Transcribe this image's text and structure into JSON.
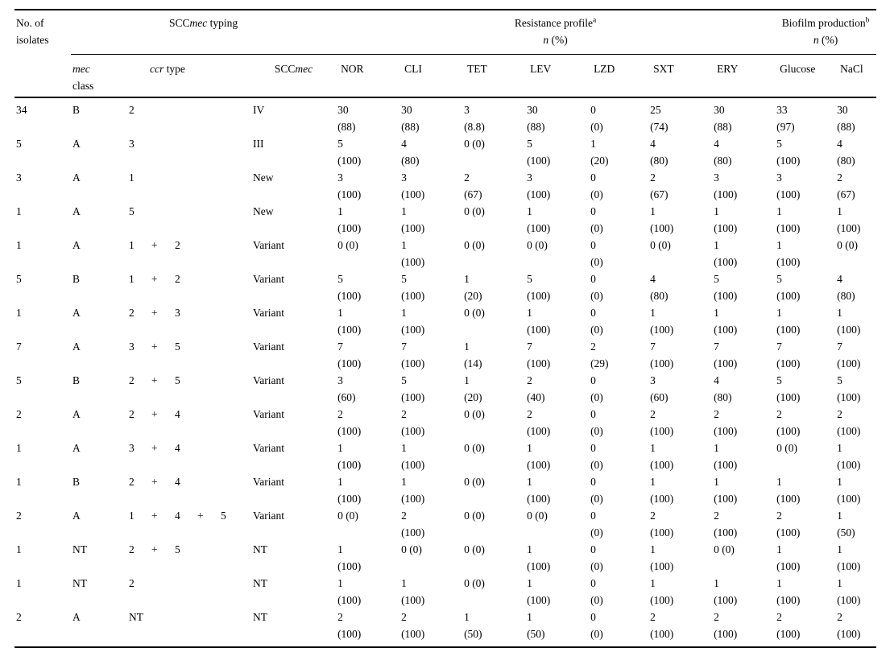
{
  "colors": {
    "background": "#ffffff",
    "text": "#000000",
    "rule": "#000000"
  },
  "table": {
    "header": {
      "no_of_isolates_line1": "No. of",
      "no_of_isolates_line2": "isolates",
      "sccmec_typing": [
        {
          "t": "SCC"
        },
        {
          "t": "mec",
          "i": true
        },
        {
          "t": " typing"
        }
      ],
      "resistance_title": [
        {
          "t": "Resistance profile"
        },
        {
          "t": "a",
          "sup": true
        }
      ],
      "biofilm_title": [
        {
          "t": "Biofilm production"
        },
        {
          "t": "b",
          "sup": true
        }
      ],
      "n_pct": [
        {
          "t": "n",
          "i": true
        },
        {
          "t": " (%)"
        }
      ],
      "mec_word": [
        {
          "t": "mec",
          "i": true
        }
      ],
      "class_word": "class",
      "ccr_type": [
        {
          "t": "ccr",
          "i": true
        },
        {
          "t": " type"
        }
      ],
      "sccmec_label": [
        {
          "t": "SCC"
        },
        {
          "t": "mec",
          "i": true
        }
      ],
      "res_cols": [
        "NOR",
        "CLI",
        "TET",
        "LEV",
        "LZD",
        "SXT",
        "ERY"
      ],
      "bio_cols": [
        "Glucose",
        "NaCl"
      ]
    },
    "value_col_keys": [
      "nor",
      "cli",
      "tet",
      "lev",
      "lzd",
      "sxt",
      "ery",
      "glucose",
      "nacl"
    ],
    "rows": [
      {
        "isolates": "34",
        "mec_class": "B",
        "ccr": [
          "2",
          "",
          "",
          "",
          ""
        ],
        "sccmec": "IV",
        "values": [
          [
            "30",
            "(88)"
          ],
          [
            "30",
            "(88)"
          ],
          [
            "3",
            "(8.8)"
          ],
          [
            "30",
            "(88)"
          ],
          [
            "0",
            "(0)"
          ],
          [
            "25",
            "(74)"
          ],
          [
            "30",
            "(88)"
          ],
          [
            "33",
            "(97)"
          ],
          [
            "30",
            "(88)"
          ]
        ]
      },
      {
        "isolates": "5",
        "mec_class": "A",
        "ccr": [
          "3",
          "",
          "",
          "",
          ""
        ],
        "sccmec": "III",
        "values": [
          [
            "5",
            "(100)"
          ],
          [
            "4",
            "(80)"
          ],
          [
            "0 (0)",
            ""
          ],
          [
            "5",
            "(100)"
          ],
          [
            "1",
            "(20)"
          ],
          [
            "4",
            "(80)"
          ],
          [
            "4",
            "(80)"
          ],
          [
            "5",
            "(100)"
          ],
          [
            "4",
            "(80)"
          ]
        ]
      },
      {
        "isolates": "3",
        "mec_class": "A",
        "ccr": [
          "1",
          "",
          "",
          "",
          ""
        ],
        "sccmec": "New",
        "values": [
          [
            "3",
            "(100)"
          ],
          [
            "3",
            "(100)"
          ],
          [
            "2",
            "(67)"
          ],
          [
            "3",
            "(100)"
          ],
          [
            "0",
            "(0)"
          ],
          [
            "2",
            "(67)"
          ],
          [
            "3",
            "(100)"
          ],
          [
            "3",
            "(100)"
          ],
          [
            "2",
            "(67)"
          ]
        ]
      },
      {
        "isolates": "1",
        "mec_class": "A",
        "ccr": [
          "5",
          "",
          "",
          "",
          ""
        ],
        "sccmec": "New",
        "values": [
          [
            "1",
            "(100)"
          ],
          [
            "1",
            "(100)"
          ],
          [
            "0 (0)",
            ""
          ],
          [
            "1",
            "(100)"
          ],
          [
            "0",
            "(0)"
          ],
          [
            "1",
            "(100)"
          ],
          [
            "1",
            "(100)"
          ],
          [
            "1",
            "(100)"
          ],
          [
            "1",
            "(100)"
          ]
        ]
      },
      {
        "isolates": "1",
        "mec_class": "A",
        "ccr": [
          "1",
          "+",
          "2",
          "",
          ""
        ],
        "sccmec": "Variant",
        "values": [
          [
            "0 (0)",
            ""
          ],
          [
            "1",
            "(100)"
          ],
          [
            "0 (0)",
            ""
          ],
          [
            "0 (0)",
            ""
          ],
          [
            "0",
            "(0)"
          ],
          [
            "0 (0)",
            ""
          ],
          [
            "1",
            "(100)"
          ],
          [
            "1",
            "(100)"
          ],
          [
            "0 (0)",
            ""
          ]
        ]
      },
      {
        "isolates": "5",
        "mec_class": "B",
        "ccr": [
          "1",
          "+",
          "2",
          "",
          ""
        ],
        "sccmec": "Variant",
        "values": [
          [
            "5",
            "(100)"
          ],
          [
            "5",
            "(100)"
          ],
          [
            "1",
            "(20)"
          ],
          [
            "5",
            "(100)"
          ],
          [
            "0",
            "(0)"
          ],
          [
            "4",
            "(80)"
          ],
          [
            "5",
            "(100)"
          ],
          [
            "5",
            "(100)"
          ],
          [
            "4",
            "(80)"
          ]
        ]
      },
      {
        "isolates": "1",
        "mec_class": "A",
        "ccr": [
          "2",
          "+",
          "3",
          "",
          ""
        ],
        "sccmec": "Variant",
        "values": [
          [
            "1",
            "(100)"
          ],
          [
            "1",
            "(100)"
          ],
          [
            "0 (0)",
            ""
          ],
          [
            "1",
            "(100)"
          ],
          [
            "0",
            "(0)"
          ],
          [
            "1",
            "(100)"
          ],
          [
            "1",
            "(100)"
          ],
          [
            "1",
            "(100)"
          ],
          [
            "1",
            "(100)"
          ]
        ]
      },
      {
        "isolates": "7",
        "mec_class": "A",
        "ccr": [
          "3",
          "+",
          "5",
          "",
          ""
        ],
        "sccmec": "Variant",
        "values": [
          [
            "7",
            "(100)"
          ],
          [
            "7",
            "(100)"
          ],
          [
            "1",
            "(14)"
          ],
          [
            "7",
            "(100)"
          ],
          [
            "2",
            "(29)"
          ],
          [
            "7",
            "(100)"
          ],
          [
            "7",
            "(100)"
          ],
          [
            "7",
            "(100)"
          ],
          [
            "7",
            "(100)"
          ]
        ]
      },
      {
        "isolates": "5",
        "mec_class": "B",
        "ccr": [
          "2",
          "+",
          "5",
          "",
          ""
        ],
        "sccmec": "Variant",
        "values": [
          [
            "3",
            "(60)"
          ],
          [
            "5",
            "(100)"
          ],
          [
            "1",
            "(20)"
          ],
          [
            "2",
            "(40)"
          ],
          [
            "0",
            "(0)"
          ],
          [
            "3",
            "(60)"
          ],
          [
            "4",
            "(80)"
          ],
          [
            "5",
            "(100)"
          ],
          [
            "5",
            "(100)"
          ]
        ]
      },
      {
        "isolates": "2",
        "mec_class": "A",
        "ccr": [
          "2",
          "+",
          "4",
          "",
          ""
        ],
        "sccmec": "Variant",
        "values": [
          [
            "2",
            "(100)"
          ],
          [
            "2",
            "(100)"
          ],
          [
            "0 (0)",
            ""
          ],
          [
            "2",
            "(100)"
          ],
          [
            "0",
            "(0)"
          ],
          [
            "2",
            "(100)"
          ],
          [
            "2",
            "(100)"
          ],
          [
            "2",
            "(100)"
          ],
          [
            "2",
            "(100)"
          ]
        ]
      },
      {
        "isolates": "1",
        "mec_class": "A",
        "ccr": [
          "3",
          "+",
          "4",
          "",
          ""
        ],
        "sccmec": "Variant",
        "values": [
          [
            "1",
            "(100)"
          ],
          [
            "1",
            "(100)"
          ],
          [
            "0 (0)",
            ""
          ],
          [
            "1",
            "(100)"
          ],
          [
            "0",
            "(0)"
          ],
          [
            "1",
            "(100)"
          ],
          [
            "1",
            "(100)"
          ],
          [
            "0 (0)",
            ""
          ],
          [
            "1",
            "(100)"
          ]
        ]
      },
      {
        "isolates": "1",
        "mec_class": "B",
        "ccr": [
          "2",
          "+",
          "4",
          "",
          ""
        ],
        "sccmec": "Variant",
        "values": [
          [
            "1",
            "(100)"
          ],
          [
            "1",
            "(100)"
          ],
          [
            "0 (0)",
            ""
          ],
          [
            "1",
            "(100)"
          ],
          [
            "0",
            "(0)"
          ],
          [
            "1",
            "(100)"
          ],
          [
            "1",
            "(100)"
          ],
          [
            "1",
            "(100)"
          ],
          [
            "1",
            "(100)"
          ]
        ]
      },
      {
        "isolates": "2",
        "mec_class": "A",
        "ccr": [
          "1",
          "+",
          "4",
          "+",
          "5"
        ],
        "sccmec": "Variant",
        "values": [
          [
            "0 (0)",
            ""
          ],
          [
            "2",
            "(100)"
          ],
          [
            "0 (0)",
            ""
          ],
          [
            "0 (0)",
            ""
          ],
          [
            "0",
            "(0)"
          ],
          [
            "2",
            "(100)"
          ],
          [
            "2",
            "(100)"
          ],
          [
            "2",
            "(100)"
          ],
          [
            "1",
            "(50)"
          ]
        ]
      },
      {
        "isolates": "1",
        "mec_class": "NT",
        "ccr": [
          "2",
          "+",
          "5",
          "",
          ""
        ],
        "sccmec": "NT",
        "values": [
          [
            "1",
            "(100)"
          ],
          [
            "0 (0)",
            ""
          ],
          [
            "0 (0)",
            ""
          ],
          [
            "1",
            "(100)"
          ],
          [
            "0",
            "(0)"
          ],
          [
            "1",
            "(100)"
          ],
          [
            "0 (0)",
            ""
          ],
          [
            "1",
            "(100)"
          ],
          [
            "1",
            "(100)"
          ]
        ]
      },
      {
        "isolates": "1",
        "mec_class": "NT",
        "ccr": [
          "2",
          "",
          "",
          "",
          ""
        ],
        "sccmec": "NT",
        "values": [
          [
            "1",
            "(100)"
          ],
          [
            "1",
            "(100)"
          ],
          [
            "0 (0)",
            ""
          ],
          [
            "1",
            "(100)"
          ],
          [
            "0",
            "(0)"
          ],
          [
            "1",
            "(100)"
          ],
          [
            "1",
            "(100)"
          ],
          [
            "1",
            "(100)"
          ],
          [
            "1",
            "(100)"
          ]
        ]
      },
      {
        "isolates": "2",
        "mec_class": "A",
        "ccr": [
          "NT",
          "",
          "",
          "",
          ""
        ],
        "sccmec": "NT",
        "values": [
          [
            "2",
            "(100)"
          ],
          [
            "2",
            "(100)"
          ],
          [
            "1",
            "(50)"
          ],
          [
            "1",
            "(50)"
          ],
          [
            "0",
            "(0)"
          ],
          [
            "2",
            "(100)"
          ],
          [
            "2",
            "(100)"
          ],
          [
            "2",
            "(100)"
          ],
          [
            "2",
            "(100)"
          ]
        ]
      }
    ]
  }
}
